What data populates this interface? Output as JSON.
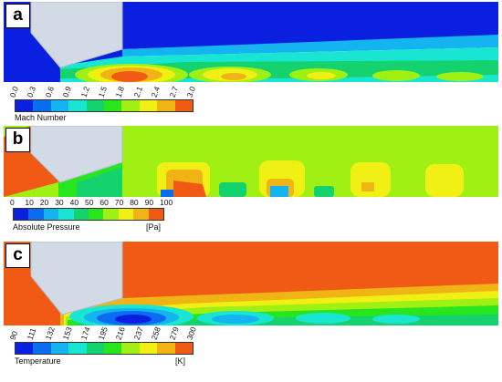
{
  "panels": [
    {
      "letter": "a",
      "colorbar": {
        "title": "Mach Number",
        "unit": "",
        "ticks": [
          "0.0",
          "0.3",
          "0.6",
          "0.9",
          "1.2",
          "1.5",
          "1.8",
          "2.1",
          "2.4",
          "2.7",
          "3.0"
        ],
        "rotated": true
      }
    },
    {
      "letter": "b",
      "colorbar": {
        "title": "Absolute Pressure",
        "unit": "[Pa]",
        "ticks": [
          "0",
          "10",
          "20",
          "30",
          "40",
          "50",
          "60",
          "70",
          "80",
          "90",
          "100"
        ],
        "rotated": false
      }
    },
    {
      "letter": "c",
      "colorbar": {
        "title": "Temperature",
        "unit": "[K]",
        "ticks": [
          "90",
          "111",
          "132",
          "153",
          "174",
          "195",
          "216",
          "237",
          "258",
          "279",
          "300"
        ],
        "rotated": true
      }
    }
  ],
  "palette": [
    "#0a1fe0",
    "#0a6df0",
    "#14b4f0",
    "#18e6d2",
    "#14d26e",
    "#28e61e",
    "#a0f014",
    "#f0f014",
    "#f0b414",
    "#f05a14"
  ],
  "nozzle_color": "#d2dae6"
}
